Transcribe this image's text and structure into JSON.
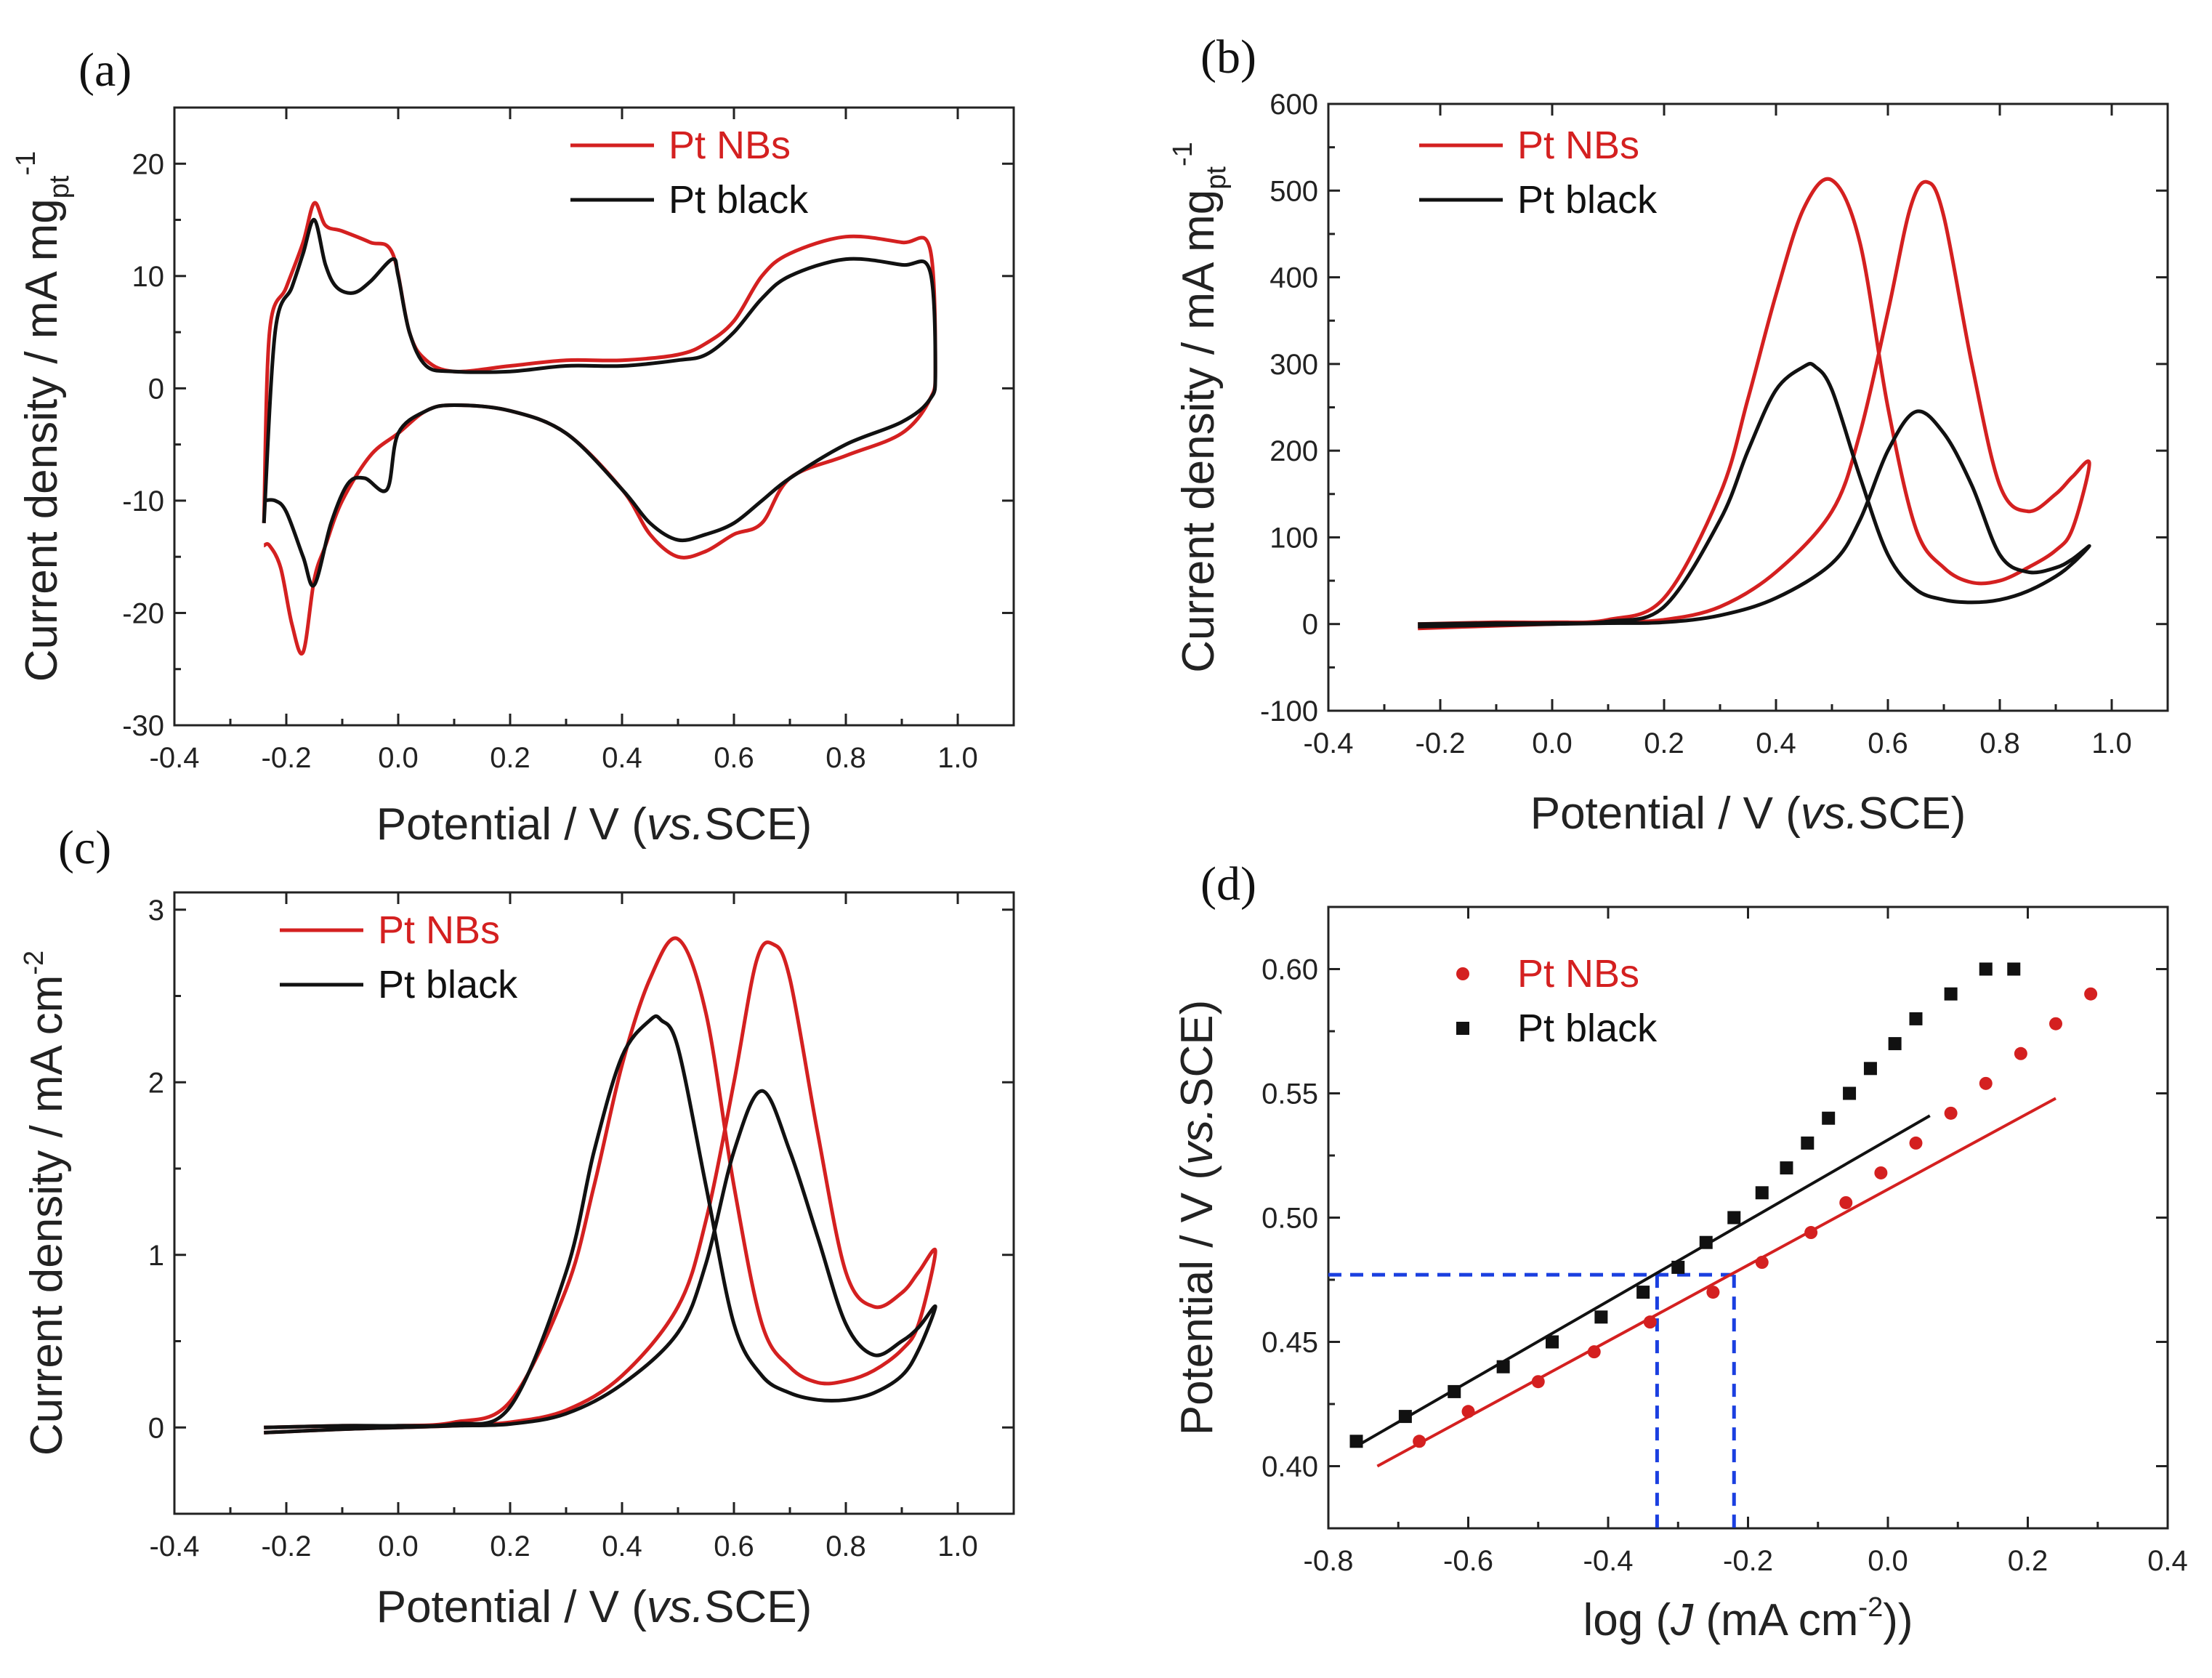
{
  "colors": {
    "pt_nbs": "#d42020",
    "pt_black": "#111111",
    "guide": "#1a3fe0",
    "axis": "#222222"
  },
  "chart_data": [
    {
      "panel": "(a)",
      "type": "line",
      "xlabel_pre": "Potential / V (",
      "xlabel_it": "vs.",
      "xlabel_post": "SCE)",
      "ylabel_main": "Current density / mA mg",
      "ylabel_sub": "pt",
      "ylabel_sup": "-1",
      "xlim": [
        -0.4,
        1.1
      ],
      "ylim": [
        -30,
        25
      ],
      "xticks": [
        -0.4,
        -0.2,
        0.0,
        0.2,
        0.4,
        0.6,
        0.8,
        1.0
      ],
      "xtick_labels": [
        "-0.4",
        "-0.2",
        "0.0",
        "0.2",
        "0.4",
        "0.6",
        "0.8",
        "1.0"
      ],
      "yticks": [
        -30,
        -20,
        -10,
        0,
        10,
        20
      ],
      "ytick_labels": [
        "-30",
        "-20",
        "-10",
        "0",
        "10",
        "20"
      ],
      "legend": [
        "Pt NBs",
        "Pt black"
      ],
      "legend_position": "top-right",
      "series": [
        {
          "name": "Pt NBs",
          "color": "pt_nbs",
          "x": [
            -0.24,
            -0.23,
            -0.2,
            -0.17,
            -0.15,
            -0.13,
            -0.1,
            -0.05,
            -0.01,
            0.02,
            0.05,
            0.1,
            0.2,
            0.3,
            0.4,
            0.5,
            0.55,
            0.6,
            0.65,
            0.7,
            0.8,
            0.9,
            0.95,
            0.96,
            0.95,
            0.9,
            0.8,
            0.7,
            0.65,
            0.6,
            0.55,
            0.5,
            0.45,
            0.4,
            0.3,
            0.2,
            0.1,
            0.05,
            0.0,
            -0.05,
            -0.1,
            -0.13,
            -0.15,
            -0.17,
            -0.19,
            -0.21,
            -0.23,
            -0.24
          ],
          "y": [
            -12,
            5,
            9,
            13,
            16.5,
            14.5,
            14,
            13,
            12,
            5,
            2.5,
            1.5,
            2,
            2.5,
            2.5,
            3,
            4,
            6,
            10,
            12,
            13.5,
            13,
            12.5,
            2,
            -1,
            -4,
            -6,
            -8,
            -12,
            -13,
            -14.5,
            -15,
            -13,
            -9,
            -4,
            -2,
            -1.5,
            -2,
            -4,
            -6,
            -10,
            -14,
            -17,
            -23.5,
            -21,
            -16,
            -14,
            -14
          ]
        },
        {
          "name": "Pt black",
          "color": "pt_black",
          "x": [
            -0.24,
            -0.22,
            -0.19,
            -0.17,
            -0.15,
            -0.13,
            -0.11,
            -0.08,
            -0.05,
            -0.01,
            0.0,
            0.02,
            0.05,
            0.1,
            0.2,
            0.3,
            0.4,
            0.5,
            0.55,
            0.6,
            0.65,
            0.7,
            0.8,
            0.9,
            0.95,
            0.96,
            0.95,
            0.9,
            0.8,
            0.7,
            0.65,
            0.6,
            0.55,
            0.5,
            0.45,
            0.4,
            0.3,
            0.2,
            0.1,
            0.05,
            0.0,
            -0.02,
            -0.06,
            -0.09,
            -0.12,
            -0.15,
            -0.17,
            -0.2,
            -0.22,
            -0.24
          ],
          "y": [
            -12,
            5,
            9,
            12,
            15,
            11,
            9,
            8.5,
            9.5,
            11.5,
            10,
            5,
            2,
            1.5,
            1.5,
            2,
            2,
            2.5,
            3,
            5,
            8,
            10,
            11.5,
            11,
            10.5,
            1.5,
            -1,
            -3,
            -5,
            -8,
            -10,
            -12,
            -13,
            -13.5,
            -12,
            -9,
            -4,
            -2,
            -1.5,
            -2,
            -4,
            -9,
            -8,
            -8.5,
            -12,
            -17.5,
            -15,
            -11,
            -10,
            -10
          ]
        }
      ]
    },
    {
      "panel": "(b)",
      "type": "line",
      "xlabel_pre": "Potential / V (",
      "xlabel_it": "vs.",
      "xlabel_post": "SCE)",
      "ylabel_main": "Current density / mA mg",
      "ylabel_sub": "pt",
      "ylabel_sup": "-1",
      "xlim": [
        -0.4,
        1.1
      ],
      "ylim": [
        -100,
        600
      ],
      "xticks": [
        -0.4,
        -0.2,
        0.0,
        0.2,
        0.4,
        0.6,
        0.8,
        1.0
      ],
      "xtick_labels": [
        "-0.4",
        "-0.2",
        "0.0",
        "0.2",
        "0.4",
        "0.6",
        "0.8",
        "1.0"
      ],
      "yticks": [
        -100,
        0,
        100,
        200,
        300,
        400,
        500,
        600
      ],
      "ytick_labels": [
        "-100",
        "0",
        "100",
        "200",
        "300",
        "400",
        "500",
        "600"
      ],
      "legend": [
        "Pt NBs",
        "Pt black"
      ],
      "legend_position": "top-left",
      "series": [
        {
          "name": "Pt NBs",
          "color": "pt_nbs",
          "x": [
            -0.24,
            -0.1,
            0.0,
            0.1,
            0.2,
            0.3,
            0.35,
            0.4,
            0.45,
            0.5,
            0.55,
            0.6,
            0.65,
            0.7,
            0.75,
            0.8,
            0.85,
            0.9,
            0.93,
            0.96,
            0.93,
            0.9,
            0.85,
            0.8,
            0.75,
            0.7,
            0.67,
            0.64,
            0.6,
            0.55,
            0.5,
            0.4,
            0.3,
            0.2,
            0.1,
            0.0,
            -0.1,
            -0.24
          ],
          "y": [
            0,
            2,
            2,
            5,
            30,
            150,
            260,
            380,
            480,
            512,
            440,
            250,
            110,
            65,
            48,
            50,
            65,
            85,
            110,
            185,
            170,
            150,
            130,
            160,
            300,
            470,
            510,
            480,
            360,
            220,
            130,
            60,
            20,
            5,
            2,
            0,
            -2,
            -5
          ]
        },
        {
          "name": "Pt black",
          "color": "pt_black",
          "x": [
            -0.24,
            -0.1,
            0.0,
            0.1,
            0.2,
            0.3,
            0.35,
            0.4,
            0.45,
            0.47,
            0.5,
            0.55,
            0.6,
            0.65,
            0.7,
            0.75,
            0.8,
            0.85,
            0.9,
            0.93,
            0.96,
            0.93,
            0.9,
            0.85,
            0.8,
            0.75,
            0.7,
            0.65,
            0.6,
            0.55,
            0.5,
            0.4,
            0.3,
            0.2,
            0.1,
            0.0,
            -0.1,
            -0.24
          ],
          "y": [
            0,
            1,
            1,
            3,
            20,
            120,
            200,
            270,
            297,
            297,
            270,
            170,
            80,
            40,
            28,
            25,
            28,
            38,
            55,
            70,
            90,
            75,
            65,
            60,
            80,
            160,
            220,
            245,
            200,
            120,
            70,
            30,
            10,
            2,
            1,
            0,
            -1,
            -3
          ]
        }
      ]
    },
    {
      "panel": "(c)",
      "type": "line",
      "xlabel_pre": "Potential / V (",
      "xlabel_it": "vs.",
      "xlabel_post": "SCE)",
      "ylabel_main": "Current density / mA cm",
      "ylabel_sub": "",
      "ylabel_sup": "-2",
      "xlim": [
        -0.4,
        1.1
      ],
      "ylim": [
        -0.5,
        3.1
      ],
      "xticks": [
        -0.4,
        -0.2,
        0.0,
        0.2,
        0.4,
        0.6,
        0.8,
        1.0
      ],
      "xtick_labels": [
        "-0.4",
        "-0.2",
        "0.0",
        "0.2",
        "0.4",
        "0.6",
        "0.8",
        "1.0"
      ],
      "yticks": [
        0,
        1,
        2,
        3
      ],
      "ytick_labels": [
        "0",
        "1",
        "2",
        "3"
      ],
      "legend": [
        "Pt NBs",
        "Pt black"
      ],
      "legend_position": "top-left",
      "series": [
        {
          "name": "Pt NBs",
          "color": "pt_nbs",
          "x": [
            -0.24,
            -0.1,
            0.0,
            0.1,
            0.2,
            0.3,
            0.35,
            0.4,
            0.45,
            0.5,
            0.55,
            0.6,
            0.65,
            0.7,
            0.75,
            0.8,
            0.85,
            0.9,
            0.93,
            0.96,
            0.93,
            0.9,
            0.85,
            0.8,
            0.75,
            0.7,
            0.67,
            0.64,
            0.6,
            0.55,
            0.5,
            0.4,
            0.3,
            0.2,
            0.1,
            0.0,
            -0.1,
            -0.24
          ],
          "y": [
            0,
            0.01,
            0.01,
            0.03,
            0.15,
            0.8,
            1.4,
            2.1,
            2.6,
            2.83,
            2.4,
            1.4,
            0.6,
            0.35,
            0.26,
            0.27,
            0.33,
            0.45,
            0.6,
            1.02,
            0.9,
            0.78,
            0.7,
            0.9,
            1.7,
            2.6,
            2.8,
            2.7,
            2.0,
            1.2,
            0.7,
            0.3,
            0.1,
            0.03,
            0.01,
            0,
            -0.01,
            -0.03
          ]
        },
        {
          "name": "Pt black",
          "color": "pt_black",
          "x": [
            -0.24,
            -0.1,
            0.0,
            0.1,
            0.2,
            0.3,
            0.35,
            0.4,
            0.45,
            0.47,
            0.5,
            0.55,
            0.6,
            0.65,
            0.7,
            0.75,
            0.8,
            0.85,
            0.9,
            0.93,
            0.96,
            0.93,
            0.9,
            0.85,
            0.8,
            0.75,
            0.7,
            0.65,
            0.6,
            0.55,
            0.5,
            0.4,
            0.3,
            0.2,
            0.1,
            0.0,
            -0.1,
            -0.24
          ],
          "y": [
            0,
            0.01,
            0.01,
            0.02,
            0.12,
            0.9,
            1.6,
            2.15,
            2.36,
            2.36,
            2.2,
            1.4,
            0.6,
            0.3,
            0.2,
            0.16,
            0.16,
            0.2,
            0.3,
            0.45,
            0.7,
            0.58,
            0.5,
            0.42,
            0.6,
            1.1,
            1.6,
            1.95,
            1.6,
            0.95,
            0.55,
            0.25,
            0.08,
            0.02,
            0.01,
            0,
            -0.01,
            -0.03
          ]
        }
      ]
    },
    {
      "panel": "(d)",
      "type": "scatter",
      "xlabel_pre": "log (",
      "xlabel_it": "J",
      "xlabel_post": " (mA cm",
      "xlabel_sup": "-2",
      "xlabel_end": "))",
      "ylabel_pre": "Potential / V (",
      "ylabel_it": "vs.",
      "ylabel_post": "SCE)",
      "xlim": [
        -0.8,
        0.4
      ],
      "ylim": [
        0.375,
        0.625
      ],
      "xticks": [
        -0.8,
        -0.6,
        -0.4,
        -0.2,
        0.0,
        0.2,
        0.4
      ],
      "xtick_labels": [
        "-0.8",
        "-0.6",
        "-0.4",
        "-0.2",
        "0.0",
        "0.2",
        "0.4"
      ],
      "yticks": [
        0.4,
        0.45,
        0.5,
        0.55,
        0.6
      ],
      "ytick_labels": [
        "0.40",
        "0.45",
        "0.50",
        "0.55",
        "0.60"
      ],
      "legend": [
        "Pt NBs",
        "Pt black"
      ],
      "legend_position": "top-left",
      "series": [
        {
          "name": "Pt NBs",
          "color": "pt_nbs",
          "marker": "circle",
          "x": [
            -0.67,
            -0.6,
            -0.5,
            -0.42,
            -0.34,
            -0.25,
            -0.18,
            -0.11,
            -0.06,
            -0.01,
            0.04,
            0.09,
            0.14,
            0.19,
            0.24,
            0.29
          ],
          "y": [
            0.41,
            0.422,
            0.434,
            0.446,
            0.458,
            0.47,
            0.482,
            0.494,
            0.506,
            0.518,
            0.53,
            0.542,
            0.554,
            0.566,
            0.578,
            0.59
          ],
          "fit": {
            "x": [
              -0.73,
              0.24
            ],
            "y": [
              0.4,
              0.548
            ]
          }
        },
        {
          "name": "Pt black",
          "color": "pt_black",
          "marker": "square",
          "x": [
            -0.76,
            -0.69,
            -0.62,
            -0.55,
            -0.48,
            -0.41,
            -0.35,
            -0.3,
            -0.26,
            -0.22,
            -0.18,
            -0.145,
            -0.115,
            -0.085,
            -0.055,
            -0.025,
            0.01,
            0.04,
            0.09,
            0.14,
            0.18
          ],
          "y": [
            0.41,
            0.42,
            0.43,
            0.44,
            0.45,
            0.46,
            0.47,
            0.48,
            0.49,
            0.5,
            0.51,
            0.52,
            0.53,
            0.54,
            0.55,
            0.56,
            0.57,
            0.58,
            0.59,
            0.6,
            0.6
          ],
          "fit": {
            "x": [
              -0.76,
              0.06
            ],
            "y": [
              0.408,
              0.541
            ]
          }
        }
      ],
      "guides": {
        "y": 0.477,
        "x1": -0.33,
        "x2": -0.22
      }
    }
  ]
}
